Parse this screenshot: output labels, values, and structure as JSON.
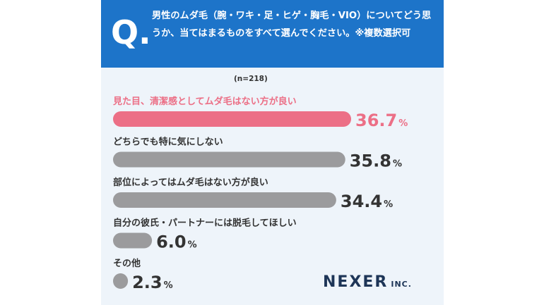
{
  "question": {
    "mark": "Q.",
    "text": "男性のムダ毛（腕・ワキ・足・ヒゲ・胸毛・VIO）についてどう思うか、当てはまるものをすべて選んでください。※複数選択可"
  },
  "sample": "(n=218)",
  "logo": {
    "main": "NEXER",
    "sub": "INC."
  },
  "colors": {
    "header": "#1d74c9",
    "highlight": "#ec6f86",
    "bar": "#9b9b9d",
    "background": "#eef4fa"
  },
  "chart_data": {
    "type": "bar",
    "orientation": "horizontal",
    "unit": "%",
    "categories": [
      "見た目、清潔感としてムダ毛はない方が良い",
      "どちらでも特に気にしない",
      "部位によってはムダ毛はない方が良い",
      "自分の彼氏・パートナーには脱毛してほしい",
      "その他"
    ],
    "values": [
      36.7,
      35.8,
      34.4,
      6.0,
      2.3
    ],
    "value_labels": [
      "36.7",
      "35.8",
      "34.4",
      "6.0",
      "2.3"
    ],
    "highlight_index": 0,
    "xlim": [
      0,
      36.7
    ]
  }
}
